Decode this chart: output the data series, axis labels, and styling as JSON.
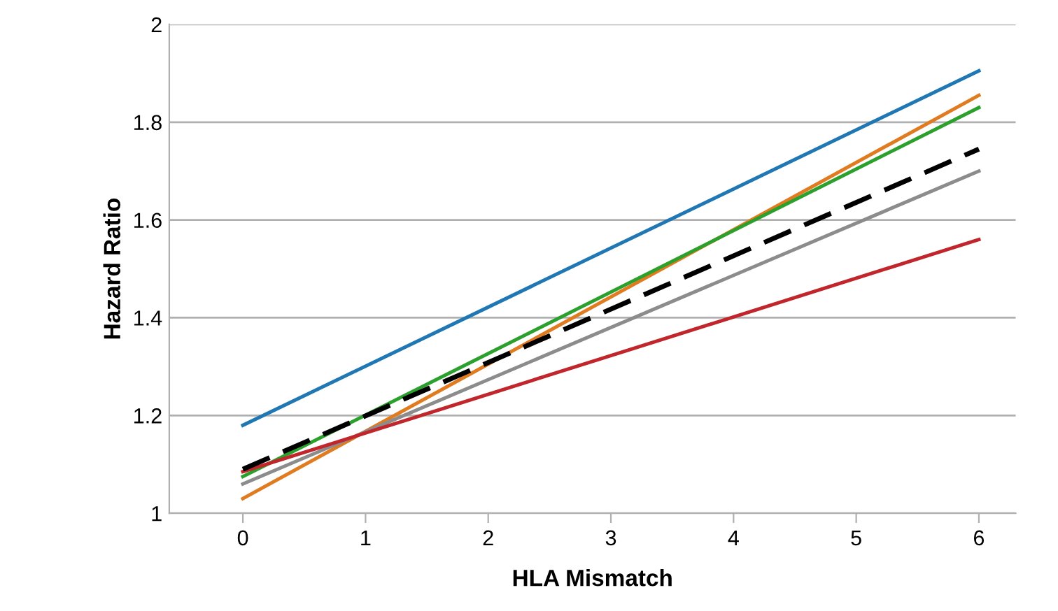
{
  "chart_data": {
    "type": "line",
    "xlabel": "HLA Mismatch",
    "ylabel": "Hazard Ratio",
    "x": [
      0,
      6
    ],
    "xlim": [
      -0.6,
      6.3
    ],
    "xticks": [
      0,
      1,
      2,
      3,
      4,
      5,
      6
    ],
    "ylim": [
      1,
      2
    ],
    "yticks": [
      1,
      1.2,
      1.4,
      1.6,
      1.8,
      2
    ],
    "grid": "y",
    "legend": false,
    "series": [
      {
        "color": "#1f77b4",
        "values": [
          1.18,
          1.905
        ]
      },
      {
        "color": "#e07b20",
        "values": [
          1.03,
          1.855
        ]
      },
      {
        "color": "#2ca02c",
        "values": [
          1.075,
          1.83
        ]
      },
      {
        "color": "#8c8c8c",
        "values": [
          1.06,
          1.7
        ]
      },
      {
        "color": "#c0262b",
        "values": [
          1.085,
          1.56
        ]
      },
      {
        "color": "#000000",
        "line_style": "dashed",
        "values": [
          1.09,
          1.745
        ]
      }
    ]
  }
}
